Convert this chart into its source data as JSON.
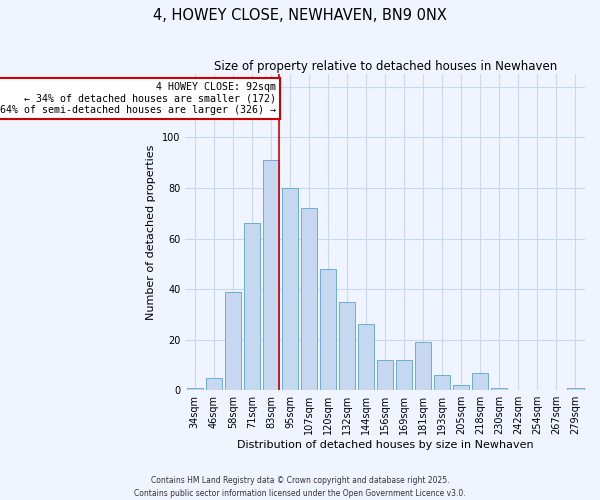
{
  "title": "4, HOWEY CLOSE, NEWHAVEN, BN9 0NX",
  "subtitle": "Size of property relative to detached houses in Newhaven",
  "xlabel": "Distribution of detached houses by size in Newhaven",
  "ylabel": "Number of detached properties",
  "bar_labels": [
    "34sqm",
    "46sqm",
    "58sqm",
    "71sqm",
    "83sqm",
    "95sqm",
    "107sqm",
    "120sqm",
    "132sqm",
    "144sqm",
    "156sqm",
    "169sqm",
    "181sqm",
    "193sqm",
    "205sqm",
    "218sqm",
    "230sqm",
    "242sqm",
    "254sqm",
    "267sqm",
    "279sqm"
  ],
  "bar_values": [
    1,
    5,
    39,
    66,
    91,
    80,
    72,
    48,
    35,
    26,
    12,
    12,
    19,
    6,
    2,
    7,
    1,
    0,
    0,
    0,
    1
  ],
  "bar_color": "#c5d8f0",
  "bar_edge_color": "#6baed6",
  "ylim": [
    0,
    125
  ],
  "yticks": [
    0,
    20,
    40,
    60,
    80,
    100,
    120
  ],
  "grid_color": "#c8d8ee",
  "background_color": "#f0f4ff",
  "vline_x_bar_index": 5,
  "vline_color": "#cc0000",
  "annotation_line1": "4 HOWEY CLOSE: 92sqm",
  "annotation_line2": "← 34% of detached houses are smaller (172)",
  "annotation_line3": "64% of semi-detached houses are larger (326) →",
  "annotation_box_color": "#ffffff",
  "annotation_box_edge": "#cc0000",
  "footer_line1": "Contains HM Land Registry data © Crown copyright and database right 2025.",
  "footer_line2": "Contains public sector information licensed under the Open Government Licence v3.0."
}
